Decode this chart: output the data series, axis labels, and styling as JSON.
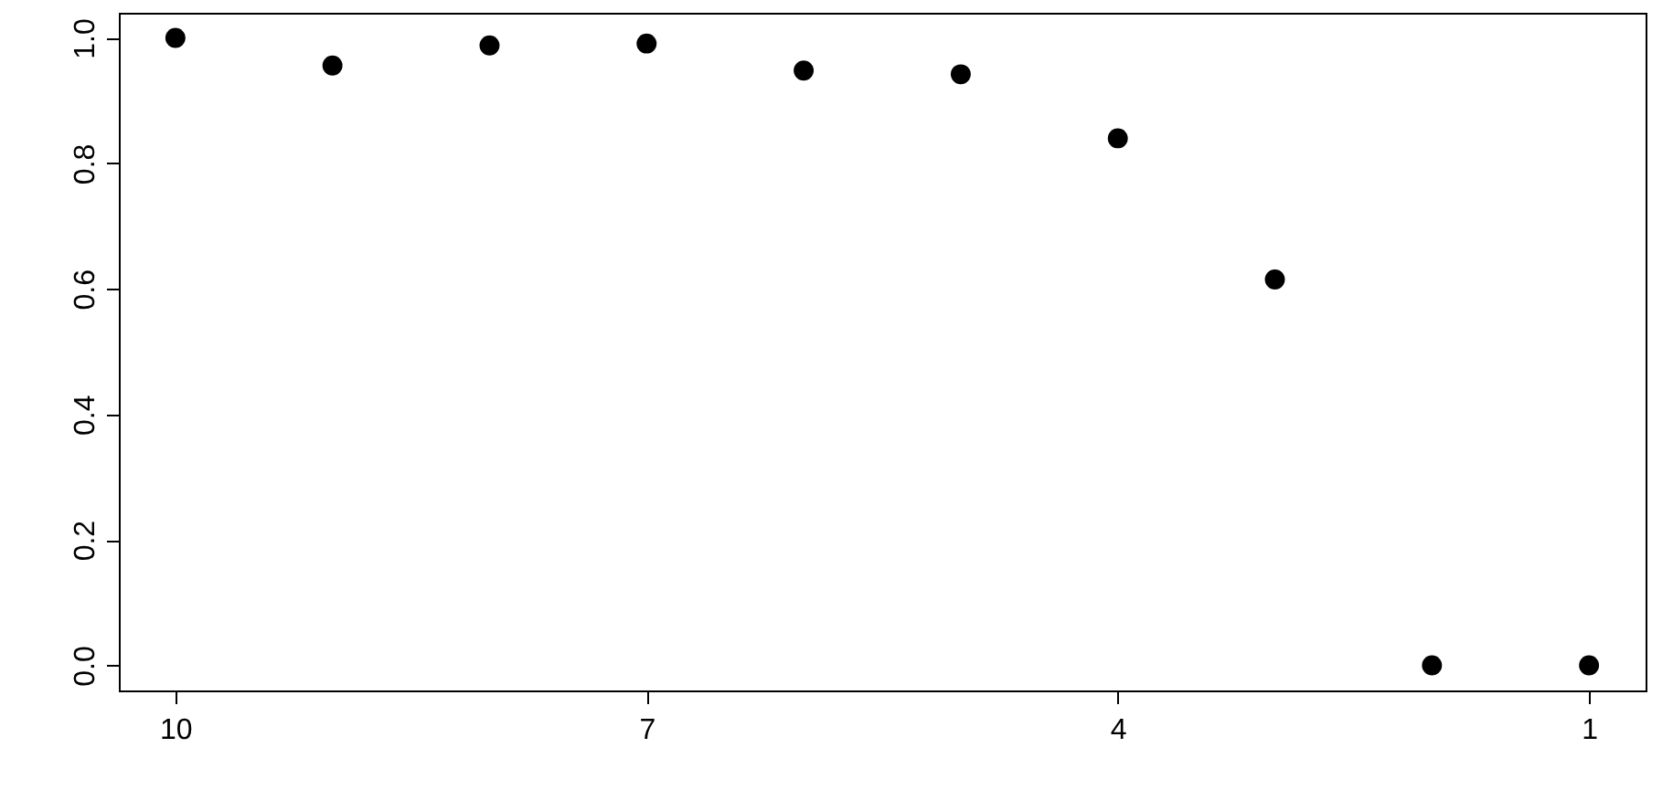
{
  "chart_data": {
    "type": "scatter",
    "x": [
      10,
      9,
      8,
      7,
      6,
      5,
      4,
      3,
      2,
      1
    ],
    "values": [
      1.0,
      0.956,
      0.988,
      0.991,
      0.948,
      0.942,
      0.84,
      0.615,
      0.0,
      0.0
    ],
    "color": "#000000",
    "marker": "circle",
    "xlim": [
      10.36,
      0.64
    ],
    "ylim": [
      -0.04,
      1.04
    ],
    "xticks": [
      10,
      7,
      4,
      1
    ],
    "yticks": [
      {
        "value": 0,
        "label": "0.0"
      },
      {
        "value": 0.2,
        "label": "0.2"
      },
      {
        "value": 0.4,
        "label": "0.4"
      },
      {
        "value": 0.6,
        "label": "0.6"
      },
      {
        "value": 0.8,
        "label": "0.8"
      },
      {
        "value": 1,
        "label": "1.0"
      }
    ]
  }
}
